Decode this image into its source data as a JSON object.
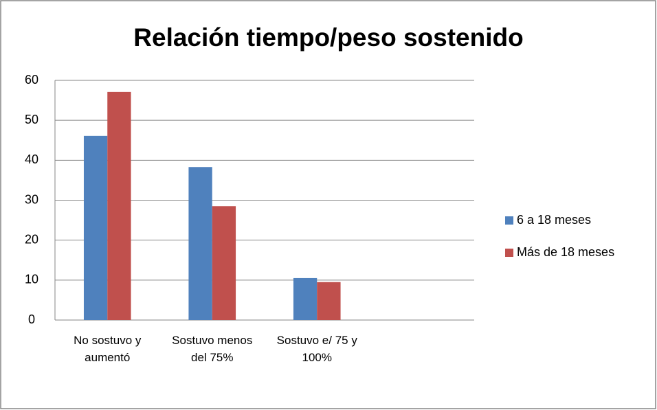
{
  "chart_data": {
    "type": "bar",
    "title": "Relación tiempo/peso sostenido",
    "categories": [
      "No sostuvo y aumentó",
      "Sostuvo menos del 75%",
      "Sostuvo e/ 75 y 100%",
      null
    ],
    "series": [
      {
        "name": "6 a 18 meses",
        "color": "#4f81bd",
        "values": [
          46.1,
          38.3,
          10.5,
          null
        ]
      },
      {
        "name": "Más de 18 meses",
        "color": "#c0504d",
        "values": [
          57.1,
          28.5,
          9.5,
          null
        ]
      }
    ],
    "ylim": [
      0,
      60
    ],
    "yticks": [
      0,
      10,
      20,
      30,
      40,
      50,
      60
    ],
    "grid": true,
    "legend": "right"
  }
}
